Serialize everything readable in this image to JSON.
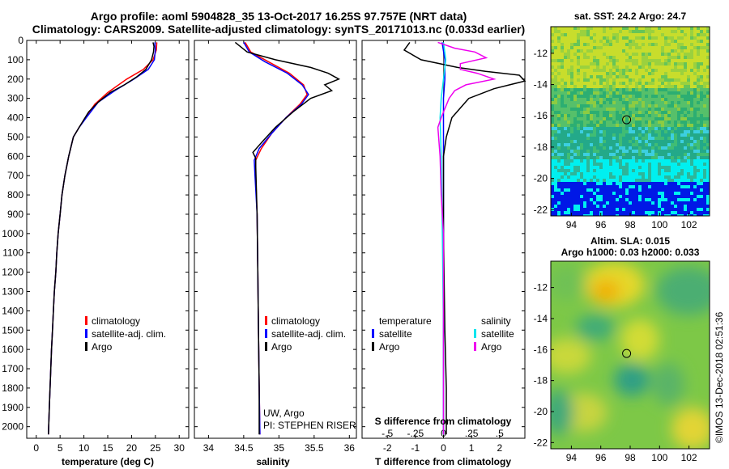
{
  "header": {
    "title_line1": "Argo profile: aoml 5904828_35 13-Oct-2017 16.25S 97.757E (NRT data)",
    "title_line2": "Climatology: CARS2009. Satellite-adjusted climatology: synTS_20171013.nc (0.033d earlier)"
  },
  "colors": {
    "climatology": "#ff0000",
    "satellite": "#0000ff",
    "argo": "#000000",
    "t_satellite": "#0000ff",
    "s_satellite": "#00e5ee",
    "s_argo": "#ee00ee"
  },
  "side": {
    "sst_title": "sat. SST: 24.2 Argo: 24.7",
    "sla_title1": "Altim. SLA: 0.015",
    "sla_title2": "Argo h1000: 0.03 h2000: 0.033",
    "stamp": "©IMOS 13-Dec-2018 02:51:36"
  },
  "chart_data": [
    {
      "type": "line",
      "xlabel": "temperature (deg C)",
      "xlim": [
        -2,
        32
      ],
      "ylim": [
        2060,
        0
      ],
      "xticks": [
        0,
        5,
        10,
        15,
        20,
        25,
        30
      ],
      "yticks": [
        0,
        100,
        200,
        300,
        400,
        500,
        600,
        700,
        800,
        900,
        1000,
        1100,
        1200,
        1300,
        1400,
        1500,
        1600,
        1700,
        1800,
        1900,
        2000
      ],
      "legend": [
        "climatology",
        "satellite-adj. clim.",
        "Argo"
      ],
      "series": [
        {
          "name": "climatology",
          "color": "#ff0000",
          "points": [
            [
              25.3,
              10
            ],
            [
              25.2,
              50
            ],
            [
              24.5,
              100
            ],
            [
              22.5,
              150
            ],
            [
              19,
              200
            ],
            [
              15,
              270
            ],
            [
              12.3,
              330
            ],
            [
              10.3,
              400
            ],
            [
              9,
              450
            ],
            [
              7.8,
              500
            ],
            [
              6.8,
              600
            ],
            [
              6.0,
              700
            ],
            [
              5.4,
              800
            ],
            [
              5.0,
              900
            ],
            [
              4.6,
              1000
            ],
            [
              4.3,
              1100
            ],
            [
              4.1,
              1200
            ],
            [
              3.8,
              1300
            ],
            [
              3.6,
              1400
            ],
            [
              3.4,
              1500
            ],
            [
              3.2,
              1600
            ],
            [
              3.05,
              1700
            ],
            [
              2.9,
              1800
            ],
            [
              2.75,
              1900
            ],
            [
              2.6,
              2000
            ],
            [
              2.55,
              2040
            ]
          ]
        },
        {
          "name": "satellite-adj. clim.",
          "color": "#0000ff",
          "points": [
            [
              24.9,
              10
            ],
            [
              25.0,
              50
            ],
            [
              24.8,
              100
            ],
            [
              23.5,
              150
            ],
            [
              20.5,
              200
            ],
            [
              16.5,
              260
            ],
            [
              13,
              320
            ],
            [
              10.5,
              400
            ],
            [
              9,
              450
            ],
            [
              7.8,
              500
            ],
            [
              6.8,
              600
            ],
            [
              6.0,
              700
            ],
            [
              5.4,
              800
            ],
            [
              5.0,
              900
            ],
            [
              4.6,
              1000
            ],
            [
              4.3,
              1100
            ],
            [
              4.1,
              1200
            ],
            [
              3.8,
              1300
            ],
            [
              3.6,
              1400
            ],
            [
              3.4,
              1500
            ],
            [
              3.2,
              1600
            ],
            [
              3.05,
              1700
            ],
            [
              2.9,
              1800
            ],
            [
              2.75,
              1900
            ],
            [
              2.6,
              2000
            ],
            [
              2.55,
              2040
            ]
          ]
        },
        {
          "name": "Argo",
          "color": "#000000",
          "points": [
            [
              24.5,
              10
            ],
            [
              24.7,
              30
            ],
            [
              24.6,
              60
            ],
            [
              24.2,
              100
            ],
            [
              23,
              150
            ],
            [
              21,
              190
            ],
            [
              18.5,
              230
            ],
            [
              15.5,
              270
            ],
            [
              13,
              320
            ],
            [
              11,
              370
            ],
            [
              10,
              410
            ],
            [
              9,
              450
            ],
            [
              7.8,
              500
            ],
            [
              6.8,
              600
            ],
            [
              6.0,
              700
            ],
            [
              5.4,
              800
            ],
            [
              5.0,
              900
            ],
            [
              4.6,
              1000
            ],
            [
              4.3,
              1100
            ],
            [
              4.1,
              1200
            ],
            [
              3.8,
              1300
            ],
            [
              3.6,
              1400
            ],
            [
              3.4,
              1500
            ],
            [
              3.2,
              1600
            ],
            [
              3.05,
              1700
            ],
            [
              2.9,
              1800
            ],
            [
              2.75,
              1900
            ],
            [
              2.6,
              2000
            ],
            [
              2.55,
              2040
            ]
          ]
        }
      ]
    },
    {
      "type": "line",
      "xlabel": "salinity",
      "xlim": [
        33.8,
        36.1
      ],
      "ylim": [
        2060,
        0
      ],
      "xticks": [
        34,
        34.5,
        35,
        35.5,
        36
      ],
      "legend": [
        "climatology",
        "satellite-adj. clim.",
        "Argo"
      ],
      "annotation": [
        "UW, Argo",
        "PI: STEPHEN RISER"
      ],
      "series": [
        {
          "name": "climatology",
          "color": "#ff0000",
          "points": [
            [
              34.52,
              10
            ],
            [
              34.6,
              60
            ],
            [
              34.85,
              110
            ],
            [
              35.15,
              170
            ],
            [
              35.35,
              230
            ],
            [
              35.4,
              280
            ],
            [
              35.3,
              330
            ],
            [
              35.1,
              400
            ],
            [
              34.9,
              480
            ],
            [
              34.75,
              560
            ],
            [
              34.67,
              620
            ],
            [
              34.67,
              700
            ],
            [
              34.69,
              900
            ],
            [
              34.7,
              1200
            ],
            [
              34.71,
              1500
            ],
            [
              34.72,
              1800
            ],
            [
              34.73,
              2040
            ]
          ]
        },
        {
          "name": "satellite-adj. clim.",
          "color": "#0000ff",
          "points": [
            [
              34.5,
              10
            ],
            [
              34.58,
              60
            ],
            [
              34.8,
              110
            ],
            [
              35.12,
              170
            ],
            [
              35.33,
              230
            ],
            [
              35.42,
              280
            ],
            [
              35.32,
              330
            ],
            [
              35.1,
              400
            ],
            [
              34.9,
              480
            ],
            [
              34.72,
              560
            ],
            [
              34.65,
              620
            ],
            [
              34.66,
              700
            ],
            [
              34.69,
              900
            ],
            [
              34.7,
              1200
            ],
            [
              34.71,
              1500
            ],
            [
              34.72,
              1800
            ],
            [
              34.73,
              2040
            ]
          ]
        },
        {
          "name": "Argo",
          "color": "#000000",
          "points": [
            [
              34.38,
              10
            ],
            [
              34.55,
              60
            ],
            [
              34.95,
              100
            ],
            [
              35.45,
              140
            ],
            [
              35.7,
              170
            ],
            [
              35.85,
              200
            ],
            [
              35.65,
              230
            ],
            [
              35.75,
              260
            ],
            [
              35.45,
              300
            ],
            [
              35.2,
              370
            ],
            [
              34.95,
              450
            ],
            [
              34.75,
              530
            ],
            [
              34.63,
              580
            ],
            [
              34.67,
              610
            ],
            [
              34.67,
              650
            ],
            [
              34.69,
              900
            ],
            [
              34.7,
              1200
            ],
            [
              34.71,
              1500
            ],
            [
              34.72,
              1800
            ],
            [
              34.72,
              2040
            ]
          ]
        }
      ]
    },
    {
      "type": "line",
      "xlabel": "T difference from climatology",
      "x2label": "S difference from climatology",
      "xlim": [
        -2.9,
        2.9
      ],
      "x2lim": [
        -0.725,
        0.725
      ],
      "ylim": [
        2060,
        0
      ],
      "xticks": [
        -2,
        -1,
        0,
        1,
        2
      ],
      "x2ticks": [
        -0.5,
        -0.25,
        0,
        0.25,
        0.5
      ],
      "legend_left": [
        "temperature",
        "satellite",
        "Argo"
      ],
      "legend_right": [
        "salinity",
        "satellite",
        "Argo"
      ],
      "series": [
        {
          "name": "T satellite",
          "color": "#0000ff",
          "points": [
            [
              -0.05,
              10
            ],
            [
              0.05,
              100
            ],
            [
              0.05,
              200
            ],
            [
              0,
              300
            ],
            [
              0,
              400
            ],
            [
              0,
              600
            ],
            [
              0,
              1000
            ],
            [
              0,
              1500
            ],
            [
              0,
              2040
            ]
          ]
        },
        {
          "name": "T Argo",
          "color": "#000000",
          "points": [
            [
              -1.2,
              10
            ],
            [
              -1.4,
              50
            ],
            [
              -0.8,
              100
            ],
            [
              0.5,
              140
            ],
            [
              1.5,
              160
            ],
            [
              2.7,
              180
            ],
            [
              2.9,
              210
            ],
            [
              1.8,
              250
            ],
            [
              0.9,
              300
            ],
            [
              0.3,
              400
            ],
            [
              0.1,
              500
            ],
            [
              0,
              600
            ],
            [
              0,
              1000
            ],
            [
              0.05,
              1500
            ],
            [
              0.1,
              1800
            ],
            [
              0.1,
              2040
            ]
          ]
        },
        {
          "name": "S satellite",
          "color": "#00e5ee",
          "points": [
            [
              0.0,
              10
            ],
            [
              0.02,
              100
            ],
            [
              0.0,
              200
            ],
            [
              -0.02,
              300
            ],
            [
              -0.03,
              400
            ],
            [
              -0.02,
              600
            ],
            [
              -0.01,
              1000
            ],
            [
              0,
              1500
            ],
            [
              0,
              2040
            ]
          ]
        },
        {
          "name": "S Argo",
          "color": "#ee00ee",
          "points": [
            [
              -0.05,
              10
            ],
            [
              0.1,
              40
            ],
            [
              0.28,
              60
            ],
            [
              0.38,
              90
            ],
            [
              0.15,
              120
            ],
            [
              0.15,
              150
            ],
            [
              0.3,
              170
            ],
            [
              0.45,
              200
            ],
            [
              0.2,
              230
            ],
            [
              0.1,
              260
            ],
            [
              0.05,
              300
            ],
            [
              -0.02,
              400
            ],
            [
              -0.05,
              450
            ],
            [
              -0.03,
              600
            ],
            [
              -0.02,
              800
            ],
            [
              0,
              1000
            ],
            [
              0,
              1500
            ],
            [
              0,
              2040
            ]
          ]
        }
      ]
    },
    {
      "type": "heatmap",
      "title": "sat. SST: 24.2 Argo: 24.7",
      "xlim": [
        92.6,
        103.4
      ],
      "ylim": [
        -22.4,
        -10.3
      ],
      "xticks": [
        94,
        96,
        98,
        100,
        102
      ],
      "yticks": [
        -12,
        -14,
        -16,
        -18,
        -20,
        -22
      ],
      "marker": {
        "lon": 97.757,
        "lat": -16.25
      }
    },
    {
      "type": "heatmap",
      "title": "Altim. SLA: 0.015",
      "subtitle": "Argo h1000: 0.03 h2000: 0.033",
      "xlim": [
        92.6,
        103.4
      ],
      "ylim": [
        -22.4,
        -10.3
      ],
      "xticks": [
        94,
        96,
        98,
        100,
        102
      ],
      "yticks": [
        -12,
        -14,
        -16,
        -18,
        -20,
        -22
      ],
      "marker": {
        "lon": 97.757,
        "lat": -16.25
      }
    }
  ]
}
